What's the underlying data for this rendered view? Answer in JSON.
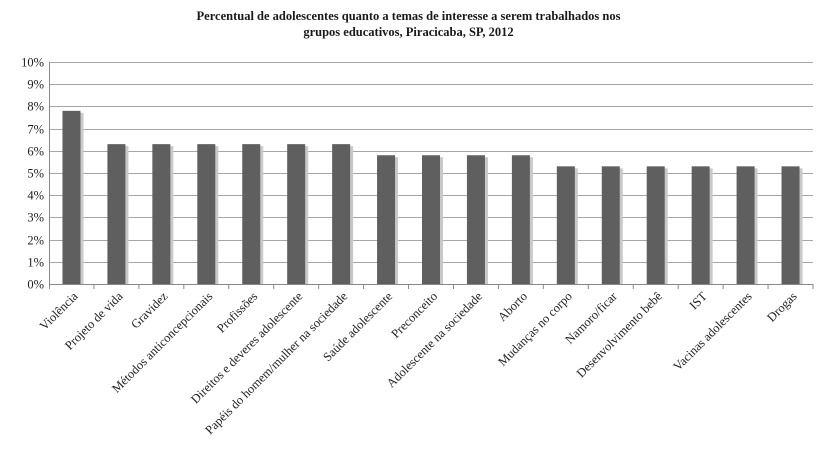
{
  "chart_data": {
    "type": "bar",
    "title_lines": [
      "Percentual de adolescentes quanto  a temas de interesse  a serem trabalhados  nos",
      "grupos educativos,  Piracicaba, SP, 2012"
    ],
    "categories": [
      "Violência",
      "Projeto de vida",
      "Gravidez",
      "Métodos anticoncepcionais",
      "Profissões",
      "Direitos e deveres adolescente",
      "Papéis do homem/mulher na sociedade",
      "Saúde adolescente",
      "Preconceito",
      "Adolescente na sociedade",
      "Aborto",
      "Mudanças no corpo",
      "Namoro/ficar",
      "Desenvolvimento bebê",
      "IST",
      "Vacinas adolescentes",
      "Drogas"
    ],
    "values": [
      7.8,
      6.3,
      6.3,
      6.3,
      6.3,
      6.3,
      6.3,
      5.8,
      5.8,
      5.8,
      5.8,
      5.3,
      5.3,
      5.3,
      5.3,
      5.3,
      5.3
    ],
    "ylim": [
      0,
      10
    ],
    "yticks": [
      "0%",
      "1%",
      "2%",
      "3%",
      "4%",
      "5%",
      "6%",
      "7%",
      "8%",
      "9%",
      "10%"
    ],
    "xlabel": "",
    "ylabel": "",
    "grid": true,
    "legend": "none",
    "bar_color": "#5f5f5f",
    "grid_color": "#a6a6a6"
  }
}
